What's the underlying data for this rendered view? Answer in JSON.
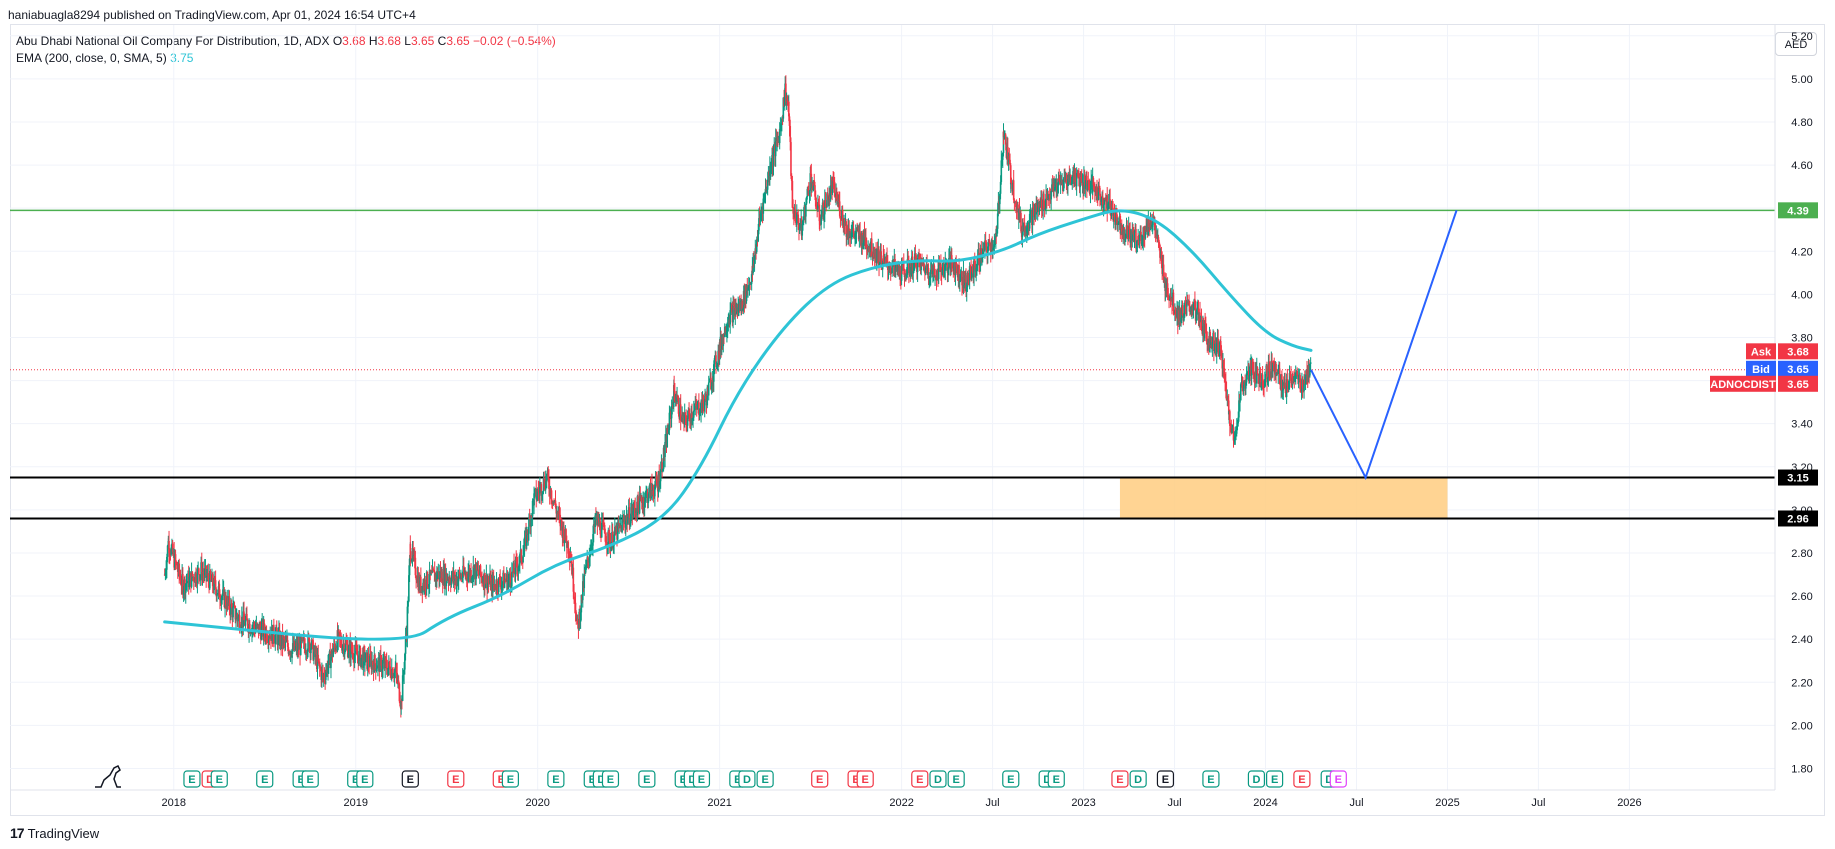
{
  "header": {
    "publisher": "haniabuagla8294 published on TradingView.com, Apr 01, 2024 16:54 UTC+4"
  },
  "legend": {
    "title": "Abu Dhabi National Oil Company For Distribution, 1D, ADX",
    "o_label": "O",
    "o_value": "3.68",
    "h_label": "H",
    "h_value": "3.68",
    "l_label": "L",
    "l_value": "3.65",
    "c_label": "C",
    "c_value": "3.65",
    "change": "−0.02 (−0.54%)",
    "ema_label": "EMA (200, close, 0, SMA, 5)",
    "ema_value": "3.75"
  },
  "toolbar": {
    "currency": "AED"
  },
  "footer": {
    "brand": "TradingView",
    "brand_mark": "17"
  },
  "colors": {
    "candle_up": "#089981",
    "candle_down": "#f23645",
    "ema": "#2ec4d6",
    "resistance": "#4caf50",
    "support": "#000000",
    "zone": "#ffcc80",
    "projection": "#2962ff",
    "last_price": "#f23645"
  },
  "chart_data": {
    "type": "candlestick",
    "symbol": "ADNOCDIST",
    "ylim": [
      1.7,
      5.25
    ],
    "y_ticks": [
      "1.80",
      "2.00",
      "2.20",
      "2.40",
      "2.60",
      "2.80",
      "3.00",
      "3.20",
      "3.40",
      "3.60",
      "3.80",
      "4.00",
      "4.20",
      "4.40",
      "4.60",
      "4.80",
      "5.00",
      "5.20"
    ],
    "x_labels": [
      {
        "label": "2018",
        "t": 2018.0
      },
      {
        "label": "2019",
        "t": 2019.0
      },
      {
        "label": "2020",
        "t": 2020.0
      },
      {
        "label": "2021",
        "t": 2021.0
      },
      {
        "label": "2022",
        "t": 2022.0
      },
      {
        "label": "Jul",
        "t": 2022.5
      },
      {
        "label": "2023",
        "t": 2023.0
      },
      {
        "label": "Jul",
        "t": 2023.5
      },
      {
        "label": "2024",
        "t": 2024.0
      },
      {
        "label": "Jul",
        "t": 2024.5
      },
      {
        "label": "2025",
        "t": 2025.0
      },
      {
        "label": "Jul",
        "t": 2025.5
      },
      {
        "label": "2026",
        "t": 2026.0
      }
    ],
    "x_range": [
      2017.1,
      2026.8
    ],
    "price_path": [
      [
        2017.95,
        2.7
      ],
      [
        2017.97,
        2.85
      ],
      [
        2018.05,
        2.65
      ],
      [
        2018.15,
        2.72
      ],
      [
        2018.25,
        2.62
      ],
      [
        2018.35,
        2.5
      ],
      [
        2018.45,
        2.45
      ],
      [
        2018.55,
        2.42
      ],
      [
        2018.65,
        2.35
      ],
      [
        2018.75,
        2.38
      ],
      [
        2018.82,
        2.22
      ],
      [
        2018.9,
        2.4
      ],
      [
        2018.97,
        2.35
      ],
      [
        2019.05,
        2.3
      ],
      [
        2019.15,
        2.28
      ],
      [
        2019.22,
        2.25
      ],
      [
        2019.25,
        2.1
      ],
      [
        2019.28,
        2.45
      ],
      [
        2019.3,
        2.82
      ],
      [
        2019.35,
        2.65
      ],
      [
        2019.45,
        2.7
      ],
      [
        2019.55,
        2.68
      ],
      [
        2019.65,
        2.72
      ],
      [
        2019.75,
        2.65
      ],
      [
        2019.85,
        2.68
      ],
      [
        2019.92,
        2.8
      ],
      [
        2019.98,
        3.05
      ],
      [
        2020.05,
        3.15
      ],
      [
        2020.12,
        2.95
      ],
      [
        2020.18,
        2.8
      ],
      [
        2020.22,
        2.45
      ],
      [
        2020.26,
        2.7
      ],
      [
        2020.32,
        2.95
      ],
      [
        2020.4,
        2.85
      ],
      [
        2020.48,
        2.95
      ],
      [
        2020.58,
        3.05
      ],
      [
        2020.66,
        3.12
      ],
      [
        2020.7,
        3.28
      ],
      [
        2020.75,
        3.55
      ],
      [
        2020.8,
        3.4
      ],
      [
        2020.85,
        3.45
      ],
      [
        2020.92,
        3.5
      ],
      [
        2021.0,
        3.75
      ],
      [
        2021.05,
        3.9
      ],
      [
        2021.12,
        3.95
      ],
      [
        2021.18,
        4.1
      ],
      [
        2021.22,
        4.35
      ],
      [
        2021.28,
        4.6
      ],
      [
        2021.33,
        4.75
      ],
      [
        2021.36,
        4.95
      ],
      [
        2021.38,
        4.85
      ],
      [
        2021.4,
        4.4
      ],
      [
        2021.45,
        4.3
      ],
      [
        2021.5,
        4.55
      ],
      [
        2021.55,
        4.35
      ],
      [
        2021.62,
        4.5
      ],
      [
        2021.7,
        4.3
      ],
      [
        2021.8,
        4.25
      ],
      [
        2021.9,
        4.15
      ],
      [
        2022.0,
        4.1
      ],
      [
        2022.08,
        4.15
      ],
      [
        2022.18,
        4.1
      ],
      [
        2022.28,
        4.15
      ],
      [
        2022.35,
        4.05
      ],
      [
        2022.45,
        4.2
      ],
      [
        2022.52,
        4.25
      ],
      [
        2022.56,
        4.75
      ],
      [
        2022.6,
        4.55
      ],
      [
        2022.66,
        4.3
      ],
      [
        2022.75,
        4.4
      ],
      [
        2022.85,
        4.5
      ],
      [
        2022.95,
        4.55
      ],
      [
        2023.05,
        4.5
      ],
      [
        2023.15,
        4.4
      ],
      [
        2023.22,
        4.3
      ],
      [
        2023.3,
        4.25
      ],
      [
        2023.38,
        4.35
      ],
      [
        2023.45,
        4.05
      ],
      [
        2023.52,
        3.9
      ],
      [
        2023.6,
        3.95
      ],
      [
        2023.68,
        3.8
      ],
      [
        2023.75,
        3.75
      ],
      [
        2023.8,
        3.45
      ],
      [
        2023.83,
        3.3
      ],
      [
        2023.86,
        3.55
      ],
      [
        2023.92,
        3.65
      ],
      [
        2023.98,
        3.6
      ],
      [
        2024.05,
        3.68
      ],
      [
        2024.1,
        3.55
      ],
      [
        2024.15,
        3.62
      ],
      [
        2024.2,
        3.58
      ],
      [
        2024.25,
        3.65
      ]
    ],
    "ema_path": [
      [
        2017.95,
        2.48
      ],
      [
        2019.27,
        2.37
      ],
      [
        2019.5,
        2.5
      ],
      [
        2019.8,
        2.6
      ],
      [
        2020.1,
        2.75
      ],
      [
        2020.4,
        2.83
      ],
      [
        2020.7,
        2.96
      ],
      [
        2020.9,
        3.2
      ],
      [
        2021.1,
        3.55
      ],
      [
        2021.35,
        3.85
      ],
      [
        2021.6,
        4.05
      ],
      [
        2021.85,
        4.13
      ],
      [
        2022.1,
        4.16
      ],
      [
        2022.3,
        4.15
      ],
      [
        2022.55,
        4.2
      ],
      [
        2022.75,
        4.28
      ],
      [
        2023.0,
        4.35
      ],
      [
        2023.2,
        4.4
      ],
      [
        2023.4,
        4.35
      ],
      [
        2023.6,
        4.2
      ],
      [
        2023.8,
        4.0
      ],
      [
        2024.0,
        3.82
      ],
      [
        2024.15,
        3.76
      ],
      [
        2024.25,
        3.74
      ]
    ],
    "levels": [
      {
        "name": "resistance",
        "value": 4.39,
        "label": "4.39"
      },
      {
        "name": "support-top",
        "value": 3.15,
        "label": "3.15"
      },
      {
        "name": "support-bottom",
        "value": 2.96,
        "label": "2.96"
      }
    ],
    "zone": {
      "t0": 2023.2,
      "t1": 2025.0,
      "y0": 2.96,
      "y1": 3.15
    },
    "projection": [
      [
        2024.25,
        3.65
      ],
      [
        2024.55,
        3.15
      ],
      [
        2025.05,
        4.39
      ]
    ],
    "last_price": 3.65,
    "price_tags": [
      {
        "name": "ask",
        "label": "Ask",
        "value": "3.68"
      },
      {
        "name": "bid",
        "label": "Bid",
        "value": "3.65"
      },
      {
        "name": "last",
        "label": "ADNOCDIST",
        "value": "3.65"
      }
    ],
    "events": "E D E  E E  E E  E D E  E E  E D E  E D E  E E  E D E  E D E  E  E D E  E D E  E  E D E  E D E  E  E D E"
  }
}
